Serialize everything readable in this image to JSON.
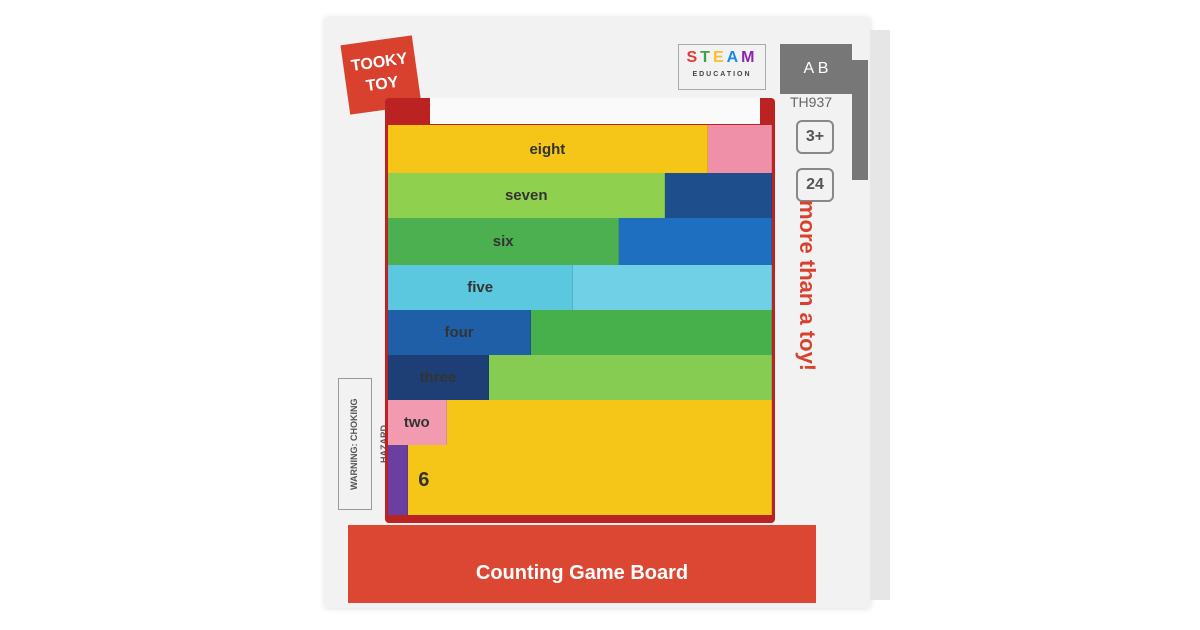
{
  "brand": "TOOKY TOY",
  "steam": {
    "title": "STEAM",
    "subtitle": "EDUCATION",
    "colors": [
      "#e53935",
      "#43a047",
      "#fbc02d",
      "#1e88e5",
      "#8e24aa"
    ]
  },
  "ab_icon": "ab-block-icon",
  "model": "TH937",
  "age": "3+",
  "pieces": "24",
  "tagline": "more than a toy!",
  "warning": "WARNING: CHOKING HAZARD",
  "product_name": "Counting Game Board",
  "rows": [
    {
      "label": "eight",
      "left": "#f5c518",
      "right": "#f08fa8",
      "split": 0.83
    },
    {
      "label": "seven",
      "left": "#8fd14f",
      "right": "#1f4e8c",
      "split": 0.72
    },
    {
      "label": "six",
      "left": "#4caf50",
      "right": "#1e6fbf",
      "split": 0.6
    },
    {
      "label": "five",
      "left": "#5bc8e0",
      "right": "#6fd0e6",
      "split": 0.48
    },
    {
      "label": "four",
      "left": "#1f5fa8",
      "right": "#47b04b",
      "split": 0.37
    },
    {
      "label": "three",
      "left": "#1d3f75",
      "right": "#86cc52",
      "split": 0.26
    },
    {
      "label": "two",
      "left": "#f29bb0",
      "right": "#f5c518",
      "split": 0.15
    },
    {
      "label": "6",
      "left": "#6b3fa0",
      "right": "#f5c518",
      "split": 0.05
    }
  ]
}
